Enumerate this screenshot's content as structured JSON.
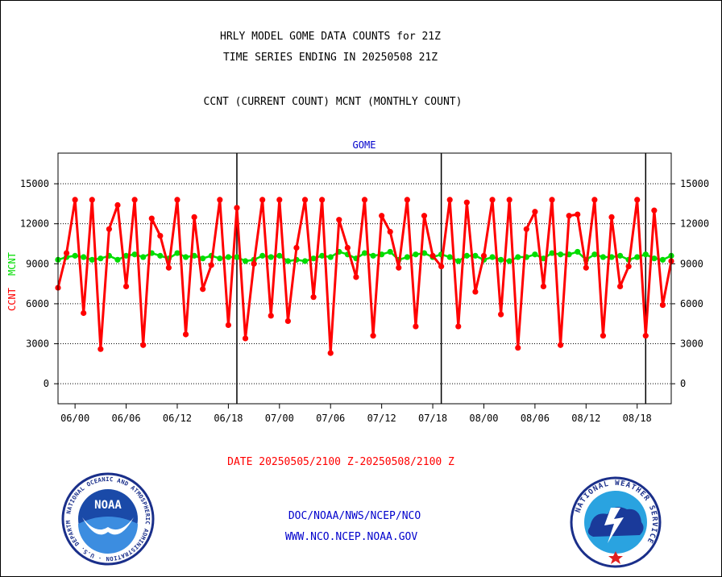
{
  "header": {
    "title_line1": "HRLY MODEL GOME DATA COUNTS for 21Z",
    "title_line2": "TIME SERIES ENDING IN 20250508 21Z",
    "subtitle": "CCNT (CURRENT COUNT) MCNT (MONTHLY COUNT)"
  },
  "footer": {
    "date_range": "DATE 20250505/2100 Z-20250508/2100 Z",
    "org_path": "DOC/NOAA/NWS/NCEP/NCO",
    "website": "WWW.NCO.NCEP.NOAA.GOV"
  },
  "logos": {
    "noaa_text": "NOAA",
    "noaa_ring_text": "NATIONAL OCEANIC AND ATMOSPHERIC ADMINISTRATION · U.S. DEPARTMENT OF COMMERCE",
    "nws_ring_text": "NATIONAL WEATHER SERVICE"
  },
  "colors": {
    "ccnt": "#ff0000",
    "mcnt": "#00dd00",
    "panel_label": "#0000cc",
    "date_label": "#ff0000",
    "footer_text": "#0000cc"
  },
  "chart_data": {
    "type": "line",
    "title": "GOME",
    "ylabel_ccnt": "CCNT",
    "ylabel_mcnt": "MCNT",
    "ylim": [
      -1500,
      17300
    ],
    "yticks": [
      0,
      3000,
      6000,
      9000,
      12000,
      15000
    ],
    "ytick_labels": [
      "0",
      "3000",
      "6000",
      "9000",
      "12000",
      "15000"
    ],
    "x_start_hour": 0,
    "x_end_hour": 72,
    "xtick_hours": [
      2,
      8,
      14,
      20,
      26,
      32,
      38,
      44,
      50,
      56,
      62,
      68
    ],
    "xtick_labels": [
      "06/00",
      "06/06",
      "06/12",
      "06/18",
      "07/00",
      "07/06",
      "07/12",
      "07/18",
      "08/00",
      "08/06",
      "08/12",
      "08/18"
    ],
    "day_boundary_hours": [
      21,
      45,
      69
    ],
    "grid": true,
    "series": [
      {
        "name": "CCNT",
        "values": [
          7200,
          9800,
          13800,
          5300,
          13800,
          2600,
          11600,
          13400,
          7300,
          13800,
          2900,
          12400,
          11100,
          8700,
          13800,
          3700,
          12500,
          7100,
          8900,
          13800,
          4400,
          13200,
          3400,
          9000,
          13800,
          5100,
          13800,
          4700,
          10200,
          13800,
          6500,
          13800,
          2300,
          12300,
          10200,
          8000,
          13800,
          3600,
          12600,
          11400,
          8700,
          13800,
          4300,
          12600,
          9600,
          8800,
          13800,
          4300,
          13600,
          6900,
          9600,
          13800,
          5200,
          13800,
          2700,
          11600,
          12900,
          7300,
          13800,
          2900,
          12600,
          12700,
          8700,
          13800,
          3600,
          12500,
          7300,
          8800,
          13800,
          3600,
          13000,
          5900,
          9200
        ]
      },
      {
        "name": "MCNT",
        "values": [
          9300,
          9500,
          9600,
          9500,
          9300,
          9400,
          9600,
          9300,
          9600,
          9700,
          9500,
          9800,
          9600,
          9400,
          9800,
          9500,
          9600,
          9400,
          9600,
          9400,
          9500,
          9500,
          9200,
          9300,
          9600,
          9500,
          9600,
          9200,
          9300,
          9200,
          9400,
          9600,
          9500,
          9900,
          9700,
          9400,
          9800,
          9600,
          9700,
          9900,
          9300,
          9500,
          9700,
          9800,
          9500,
          9700,
          9500,
          9200,
          9600,
          9600,
          9300,
          9500,
          9300,
          9200,
          9500,
          9500,
          9700,
          9400,
          9800,
          9700,
          9700,
          9900,
          9300,
          9700,
          9500,
          9500,
          9600,
          9300,
          9500,
          9700,
          9400,
          9300,
          9600
        ]
      }
    ]
  }
}
